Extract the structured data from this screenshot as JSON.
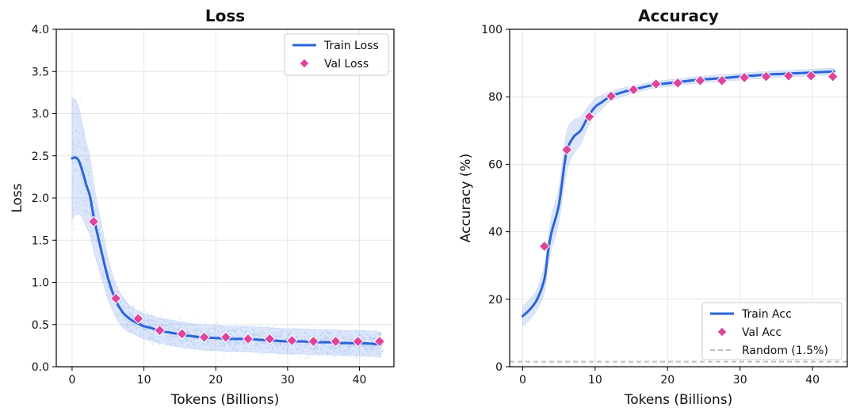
{
  "chart_data": [
    {
      "type": "line",
      "title": "Loss",
      "xlabel": "Tokens (Billions)",
      "ylabel": "Loss",
      "xlim": [
        -2.2,
        44.8
      ],
      "ylim": [
        0.0,
        4.0
      ],
      "xticks": [
        0,
        10,
        20,
        30,
        40
      ],
      "yticks": [
        0.0,
        0.5,
        1.0,
        1.5,
        2.0,
        2.5,
        3.0,
        3.5,
        4.0
      ],
      "ytick_labels": [
        "0.0",
        "0.5",
        "1.0",
        "1.5",
        "2.0",
        "2.5",
        "3.0",
        "3.5",
        "4.0"
      ],
      "grid": true,
      "legend_position": "top-right",
      "series": [
        {
          "name": "Train Loss",
          "style": "line",
          "color": "#2b63d9",
          "x": [
            0,
            0.5,
            1,
            1.5,
            2,
            2.5,
            3,
            4,
            5,
            6,
            7,
            8,
            9,
            10,
            11,
            12,
            14,
            16,
            18,
            20,
            22,
            24,
            26,
            28,
            30,
            32,
            34,
            36,
            38,
            40,
            42,
            43
          ],
          "y": [
            2.47,
            2.48,
            2.43,
            2.3,
            2.15,
            2.02,
            1.78,
            1.4,
            1.05,
            0.8,
            0.65,
            0.57,
            0.52,
            0.48,
            0.46,
            0.43,
            0.4,
            0.37,
            0.35,
            0.34,
            0.33,
            0.33,
            0.32,
            0.31,
            0.3,
            0.3,
            0.29,
            0.29,
            0.28,
            0.28,
            0.27,
            0.26
          ],
          "band_halfwidth": [
            0.72,
            0.68,
            0.62,
            0.55,
            0.5,
            0.46,
            0.4,
            0.32,
            0.25,
            0.2,
            0.18,
            0.16,
            0.15,
            0.15,
            0.15,
            0.15,
            0.15,
            0.15,
            0.15,
            0.15,
            0.15,
            0.15,
            0.15,
            0.15,
            0.15,
            0.15,
            0.15,
            0.15,
            0.15,
            0.15,
            0.15,
            0.15
          ]
        },
        {
          "name": "Val Loss",
          "style": "marker",
          "color": "#e0449a",
          "x": [
            3,
            6.1,
            9.2,
            12.2,
            15.3,
            18.4,
            21.4,
            24.5,
            27.5,
            30.6,
            33.6,
            36.7,
            39.8,
            42.8
          ],
          "y": [
            1.72,
            0.81,
            0.57,
            0.43,
            0.39,
            0.35,
            0.35,
            0.33,
            0.33,
            0.31,
            0.3,
            0.3,
            0.3,
            0.3
          ]
        }
      ]
    },
    {
      "type": "line",
      "title": "Accuracy",
      "xlabel": "Tokens (Billions)",
      "ylabel": "Accuracy (%)",
      "xlim": [
        -1.8,
        44.8
      ],
      "ylim": [
        0,
        100
      ],
      "xticks": [
        0,
        10,
        20,
        30,
        40
      ],
      "yticks": [
        0,
        20,
        40,
        60,
        80,
        100
      ],
      "ytick_labels": [
        "0",
        "20",
        "40",
        "60",
        "80",
        "100"
      ],
      "grid": true,
      "legend_position": "bottom-right",
      "series": [
        {
          "name": "Train Acc",
          "style": "line",
          "color": "#2b63d9",
          "x": [
            0,
            1,
            2,
            3,
            3.5,
            4,
            5,
            6,
            7,
            8,
            9,
            10,
            11,
            12,
            14,
            16,
            18,
            20,
            22,
            24,
            26,
            28,
            30,
            32,
            34,
            36,
            38,
            40,
            42,
            43
          ],
          "y": [
            15,
            17,
            20,
            26,
            34,
            40,
            48,
            63,
            68,
            70,
            74,
            77,
            78.5,
            80,
            81.5,
            82.5,
            83.5,
            84,
            84.5,
            85,
            85.3,
            85.6,
            86,
            86.3,
            86.6,
            86.8,
            87,
            87.2,
            87.4,
            87.5
          ],
          "band_halfwidth": [
            3,
            3,
            3,
            4,
            4,
            5,
            5,
            6,
            5,
            4,
            3,
            2.5,
            2,
            1.5,
            1.2,
            1,
            1,
            1,
            1,
            1,
            1,
            1,
            1,
            1,
            1,
            1,
            1,
            1,
            1,
            1
          ]
        },
        {
          "name": "Val Acc",
          "style": "marker",
          "color": "#e0449a",
          "x": [
            3,
            6.1,
            9.2,
            12.2,
            15.3,
            18.4,
            21.4,
            24.5,
            27.5,
            30.6,
            33.6,
            36.7,
            39.8,
            42.8
          ],
          "y": [
            35.7,
            64.3,
            74.1,
            80.2,
            82.1,
            83.8,
            84.1,
            84.8,
            84.8,
            85.7,
            86,
            86.2,
            86.2,
            86
          ]
        },
        {
          "name": "Random (1.5%)",
          "style": "dashed-hline",
          "color": "#bdbdbd",
          "y": 1.5
        }
      ]
    }
  ]
}
